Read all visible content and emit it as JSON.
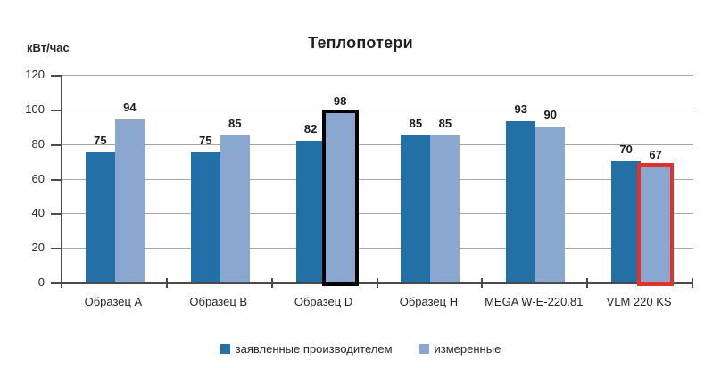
{
  "colors": {
    "series_declared": "#2370A6",
    "series_measured": "#8AA7CF",
    "gridline": "#A6A6A6",
    "axis": "#4A4A4A",
    "highlight_black": "#000000",
    "highlight_red": "#E0312D",
    "text": "#262626"
  },
  "chart_data": {
    "type": "bar",
    "title": "Теплопотери",
    "ylabel": "кВт/час",
    "xlabel": "",
    "ylim": [
      0,
      120
    ],
    "yticks": [
      0,
      20,
      40,
      60,
      80,
      100,
      120
    ],
    "grid": true,
    "legend_position": "bottom",
    "categories": [
      "Образец A",
      "Образец B",
      "Образец D",
      "Образец H",
      "MEGA W-E-220.81",
      "VLM 220 KS"
    ],
    "series": [
      {
        "name": "заявленные производителем",
        "color": "#2370A6",
        "values": [
          75,
          75,
          82,
          85,
          93,
          70
        ]
      },
      {
        "name": "измеренные",
        "color": "#8AA7CF",
        "values": [
          94,
          85,
          98,
          85,
          90,
          67
        ]
      }
    ],
    "highlights": [
      {
        "category": "Образец D",
        "series": "измеренные",
        "outline": "#000000"
      },
      {
        "category": "VLM 220 KS",
        "series": "измеренные",
        "outline": "#E0312D"
      }
    ]
  }
}
